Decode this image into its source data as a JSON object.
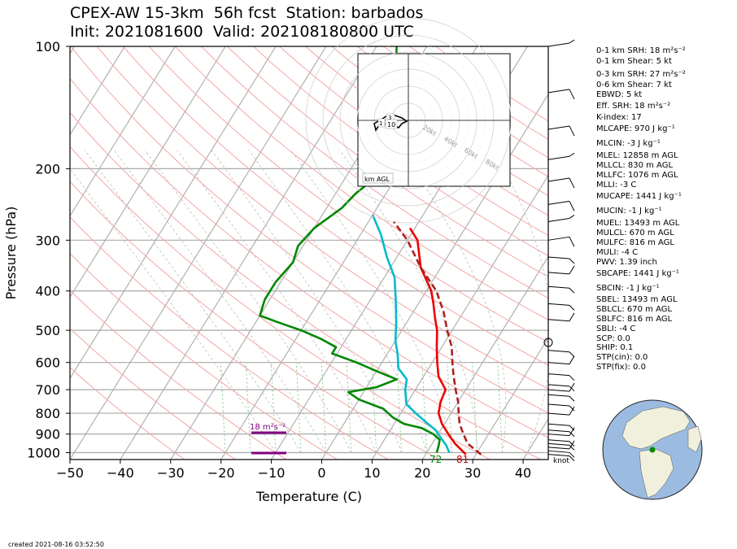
{
  "header": {
    "title_line1": "CPEX-AW 15-3km  56h fcst  Station: barbados",
    "title_line2": "Init: 2021081600  Valid: 202108180800 UTC"
  },
  "footer": {
    "created": "created 2021-08-16 03:52:50"
  },
  "chart_data": {
    "type": "line",
    "subtype": "skew-T log-p",
    "xlabel": "Temperature (C)",
    "ylabel": "Pressure (hPa)",
    "xlim": [
      -50,
      45
    ],
    "ylim": [
      1040,
      100
    ],
    "y_scale": "log",
    "x_ticks": [
      "−50",
      "−40",
      "−30",
      "−20",
      "−10",
      "0",
      "10",
      "20",
      "30",
      "40"
    ],
    "y_ticks": [
      "100",
      "200",
      "300",
      "400",
      "500",
      "600",
      "700",
      "800",
      "900",
      "1000"
    ],
    "x_tick_values": [
      -50,
      -40,
      -30,
      -20,
      -10,
      0,
      10,
      20,
      30,
      40
    ],
    "y_tick_values": [
      100,
      200,
      300,
      400,
      500,
      600,
      700,
      800,
      900,
      1000
    ],
    "surface_labels": {
      "dewpoint": "72",
      "temperature": "81"
    },
    "series": [
      {
        "role": "temperature",
        "color": "#ee0000",
        "points": [
          [
            28,
            1010
          ],
          [
            24.5,
            950
          ],
          [
            22,
            900
          ],
          [
            19.5,
            850
          ],
          [
            17.5,
            800
          ],
          [
            16.5,
            750
          ],
          [
            16,
            700
          ],
          [
            13,
            650
          ],
          [
            11,
            600
          ],
          [
            9,
            550
          ],
          [
            7,
            500
          ],
          [
            5,
            465
          ],
          [
            3,
            430
          ],
          [
            1,
            400
          ],
          [
            -4,
            350
          ],
          [
            -8,
            300
          ],
          [
            -11,
            280
          ]
        ]
      },
      {
        "role": "dewpoint",
        "color": "#008800",
        "points": [
          [
            22,
            1000
          ],
          [
            21.5,
            960
          ],
          [
            21,
            930
          ],
          [
            19,
            900
          ],
          [
            16,
            870
          ],
          [
            12,
            850
          ],
          [
            9,
            820
          ],
          [
            6,
            780
          ],
          [
            0,
            740
          ],
          [
            -3,
            710
          ],
          [
            2,
            690
          ],
          [
            5,
            660
          ],
          [
            0,
            630
          ],
          [
            -5,
            600
          ],
          [
            -11,
            570
          ],
          [
            -11,
            550
          ],
          [
            -15,
            525
          ],
          [
            -20,
            500
          ],
          [
            -25,
            480
          ],
          [
            -30,
            460
          ],
          [
            -31,
            420
          ],
          [
            -31,
            380
          ],
          [
            -30,
            340
          ],
          [
            -31,
            310
          ],
          [
            -30,
            280
          ],
          [
            -27,
            250
          ],
          [
            -26,
            230
          ],
          [
            -25,
            220
          ],
          [
            -24,
            205
          ],
          [
            -24,
            190
          ],
          [
            -25,
            175
          ],
          [
            -27,
            160
          ],
          [
            -30,
            140
          ],
          [
            -33,
            120
          ],
          [
            -35,
            105
          ],
          [
            -36,
            100
          ]
        ]
      },
      {
        "role": "wetbulb",
        "color": "#00bbcc",
        "points": [
          [
            24.5,
            1000
          ],
          [
            23,
            960
          ],
          [
            21,
            920
          ],
          [
            19,
            880
          ],
          [
            16,
            840
          ],
          [
            13,
            800
          ],
          [
            10,
            760
          ],
          [
            8,
            700
          ],
          [
            7,
            660
          ],
          [
            4,
            620
          ],
          [
            2,
            570
          ],
          [
            0,
            530
          ],
          [
            -2,
            480
          ],
          [
            -5,
            420
          ],
          [
            -8,
            370
          ],
          [
            -12,
            330
          ],
          [
            -16,
            290
          ],
          [
            -20,
            260
          ]
        ]
      },
      {
        "role": "parcel",
        "color": "#aa2222",
        "dashed": true,
        "points": [
          [
            31,
            1010
          ],
          [
            27,
            950
          ],
          [
            25,
            900
          ],
          [
            23,
            850
          ],
          [
            21.5,
            800
          ],
          [
            20,
            750
          ],
          [
            18,
            700
          ],
          [
            16,
            650
          ],
          [
            14,
            600
          ],
          [
            12,
            550
          ],
          [
            9,
            500
          ],
          [
            6,
            450
          ],
          [
            2,
            400
          ],
          [
            -4,
            350
          ],
          [
            -10,
            300
          ],
          [
            -15,
            270
          ]
        ]
      }
    ],
    "srh_markers": [
      {
        "label": "18 m²s⁻²"
      }
    ],
    "hodograph": {
      "legend": "km AGL",
      "ring_labels": [
        "20kt",
        "40kt",
        "60kt",
        "80kt"
      ],
      "height_labels": [
        "1",
        "3",
        "10"
      ]
    },
    "wind_unit": "knot"
  },
  "indices": [
    "0-1 km SRH: 18 m²s⁻²",
    "0-1 km Shear: 5 kt",
    "0-3 km SRH: 27 m²s⁻²",
    "0-6 km Shear: 7 kt",
    "EBWD: 5 kt",
    "Eff. SRH: 18 m²s⁻²",
    "K-index: 17",
    "MLCAPE: 970 J kg⁻¹",
    "MLCIN: -3 J kg⁻¹",
    "MLEL: 12858 m AGL",
    "MLLCL: 830 m AGL",
    "MLLFC: 1076 m AGL",
    "MLLI: -3 C",
    "MUCAPE: 1441 J kg⁻¹",
    "MUCIN: -1 J kg⁻¹",
    "MUEL: 13493 m AGL",
    "MULCL: 670 m AGL",
    "MULFC: 816 m AGL",
    "MULI: -4 C",
    "PWV: 1.39 inch",
    "SBCAPE: 1441 J kg⁻¹",
    "SBCIN: -1 J kg⁻¹",
    "SBEL: 13493 m AGL",
    "SBLCL: 670 m AGL",
    "SBLFC: 816 m AGL",
    "SBLI: -4 C",
    "SCP: 0.0",
    "SHIP: 0.1",
    "STP(cin): 0.0",
    "STP(fix): 0.0"
  ]
}
